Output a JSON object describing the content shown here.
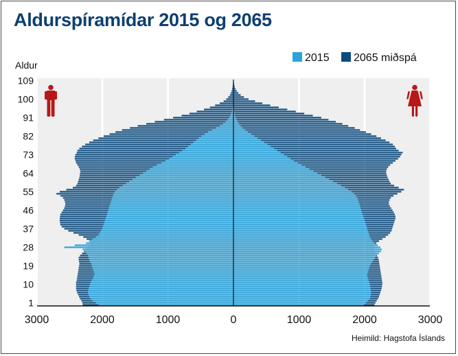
{
  "title": "Aldurspíramídar 2015 og 2065",
  "source": "Heimild: Hagstofa Íslands",
  "colors": {
    "s2015": "#2ba4dc",
    "s2065": "#0e4b7e",
    "panel": "#efefef",
    "grid": "#ffffff",
    "figure": "#b81818"
  },
  "chart_data": {
    "type": "bar",
    "orientation": "horizontal-population-pyramid",
    "title": "Aldurspíramídar 2015 og 2065",
    "ylabel": "Aldur",
    "xlabel": "",
    "xlim": [
      -3000,
      3000
    ],
    "ylim": [
      0,
      110
    ],
    "x_tick_labels": [
      "3000",
      "2000",
      "1000",
      "0",
      "1000",
      "2000",
      "3000"
    ],
    "y_tick_labels": [
      "1",
      "10",
      "19",
      "28",
      "37",
      "46",
      "55",
      "64",
      "73",
      "82",
      "91",
      "100",
      "109"
    ],
    "legend": {
      "position": "top-right",
      "entries": [
        "2015",
        "2065 miðspá"
      ]
    },
    "left_side": "male",
    "right_side": "female",
    "series": [
      {
        "name": "2065 miðspá",
        "male": [
          2300,
          2305,
          2320,
          2340,
          2355,
          2370,
          2385,
          2395,
          2400,
          2400,
          2400,
          2400,
          2390,
          2385,
          2380,
          2375,
          2370,
          2365,
          2360,
          2355,
          2350,
          2355,
          2360,
          2360,
          2340,
          2310,
          2280,
          2250,
          2215,
          2190,
          2180,
          2200,
          2240,
          2290,
          2360,
          2440,
          2520,
          2580,
          2620,
          2640,
          2645,
          2650,
          2650,
          2645,
          2640,
          2620,
          2600,
          2580,
          2570,
          2565,
          2570,
          2580,
          2600,
          2640,
          2700,
          2650,
          2550,
          2450,
          2400,
          2380,
          2370,
          2360,
          2350,
          2345,
          2340,
          2335,
          2345,
          2360,
          2380,
          2400,
          2410,
          2420,
          2420,
          2410,
          2390,
          2380,
          2350,
          2310,
          2260,
          2200,
          2140,
          2060,
          1980,
          1890,
          1800,
          1700,
          1580,
          1460,
          1330,
          1200,
          1060,
          920,
          790,
          670,
          560,
          450,
          360,
          280,
          210,
          150,
          110,
          80,
          55,
          40,
          28,
          20,
          14,
          10,
          7,
          4
        ],
        "female": [
          2150,
          2165,
          2185,
          2205,
          2220,
          2230,
          2240,
          2250,
          2260,
          2265,
          2270,
          2270,
          2265,
          2260,
          2255,
          2250,
          2245,
          2240,
          2235,
          2230,
          2225,
          2220,
          2215,
          2205,
          2190,
          2175,
          2160,
          2145,
          2140,
          2150,
          2180,
          2220,
          2270,
          2320,
          2360,
          2390,
          2410,
          2420,
          2430,
          2440,
          2450,
          2460,
          2470,
          2470,
          2460,
          2445,
          2425,
          2405,
          2385,
          2370,
          2370,
          2380,
          2400,
          2440,
          2500,
          2560,
          2600,
          2520,
          2450,
          2400,
          2380,
          2365,
          2350,
          2340,
          2330,
          2330,
          2340,
          2360,
          2390,
          2430,
          2470,
          2510,
          2540,
          2560,
          2580,
          2520,
          2480,
          2460,
          2430,
          2380,
          2320,
          2250,
          2180,
          2100,
          2020,
          1930,
          1850,
          1750,
          1660,
          1560,
          1450,
          1340,
          1210,
          1080,
          950,
          820,
          690,
          560,
          440,
          330,
          230,
          160,
          110,
          75,
          50,
          32,
          20,
          12,
          7,
          4
        ]
      },
      {
        "name": "2015",
        "male": [
          2060,
          2100,
          2150,
          2180,
          2200,
          2210,
          2220,
          2215,
          2210,
          2200,
          2190,
          2180,
          2160,
          2140,
          2130,
          2120,
          2130,
          2140,
          2150,
          2160,
          2170,
          2190,
          2200,
          2210,
          2220,
          2240,
          2270,
          2300,
          2580,
          2420,
          2250,
          2200,
          2150,
          2100,
          2060,
          2040,
          2020,
          2000,
          1990,
          1980,
          1970,
          1960,
          1950,
          1940,
          1930,
          1920,
          1910,
          1900,
          1890,
          1880,
          1870,
          1860,
          1850,
          1840,
          1830,
          1810,
          1780,
          1740,
          1690,
          1640,
          1590,
          1540,
          1490,
          1430,
          1380,
          1330,
          1280,
          1230,
          1170,
          1100,
          1040,
          980,
          930,
          880,
          830,
          780,
          730,
          690,
          650,
          610,
          570,
          530,
          490,
          440,
          390,
          330,
          270,
          210,
          160,
          120,
          90,
          65,
          48,
          36,
          26,
          18,
          13,
          9,
          6,
          4,
          3,
          2,
          2,
          1,
          1,
          1,
          1,
          1,
          1,
          1
        ],
        "female": [
          1990,
          2020,
          2050,
          2080,
          2090,
          2095,
          2100,
          2095,
          2090,
          2085,
          2080,
          2070,
          2060,
          2050,
          2040,
          2040,
          2050,
          2060,
          2070,
          2080,
          2100,
          2120,
          2140,
          2160,
          2180,
          2220,
          2250,
          2260,
          2240,
          2200,
          2150,
          2120,
          2100,
          2080,
          2070,
          2060,
          2050,
          2040,
          2030,
          2020,
          2010,
          2000,
          1990,
          1980,
          1970,
          1960,
          1950,
          1940,
          1930,
          1920,
          1910,
          1900,
          1890,
          1870,
          1840,
          1800,
          1750,
          1700,
          1640,
          1580,
          1520,
          1460,
          1400,
          1340,
          1280,
          1220,
          1160,
          1100,
          1040,
          980,
          920,
          870,
          820,
          770,
          720,
          670,
          620,
          570,
          520,
          470,
          420,
          370,
          320,
          270,
          220,
          180,
          140,
          110,
          85,
          65,
          48,
          35,
          25,
          18,
          12,
          8,
          5,
          3,
          2,
          2,
          1,
          1,
          1,
          1,
          1,
          1,
          1,
          1,
          1,
          1
        ]
      }
    ]
  }
}
